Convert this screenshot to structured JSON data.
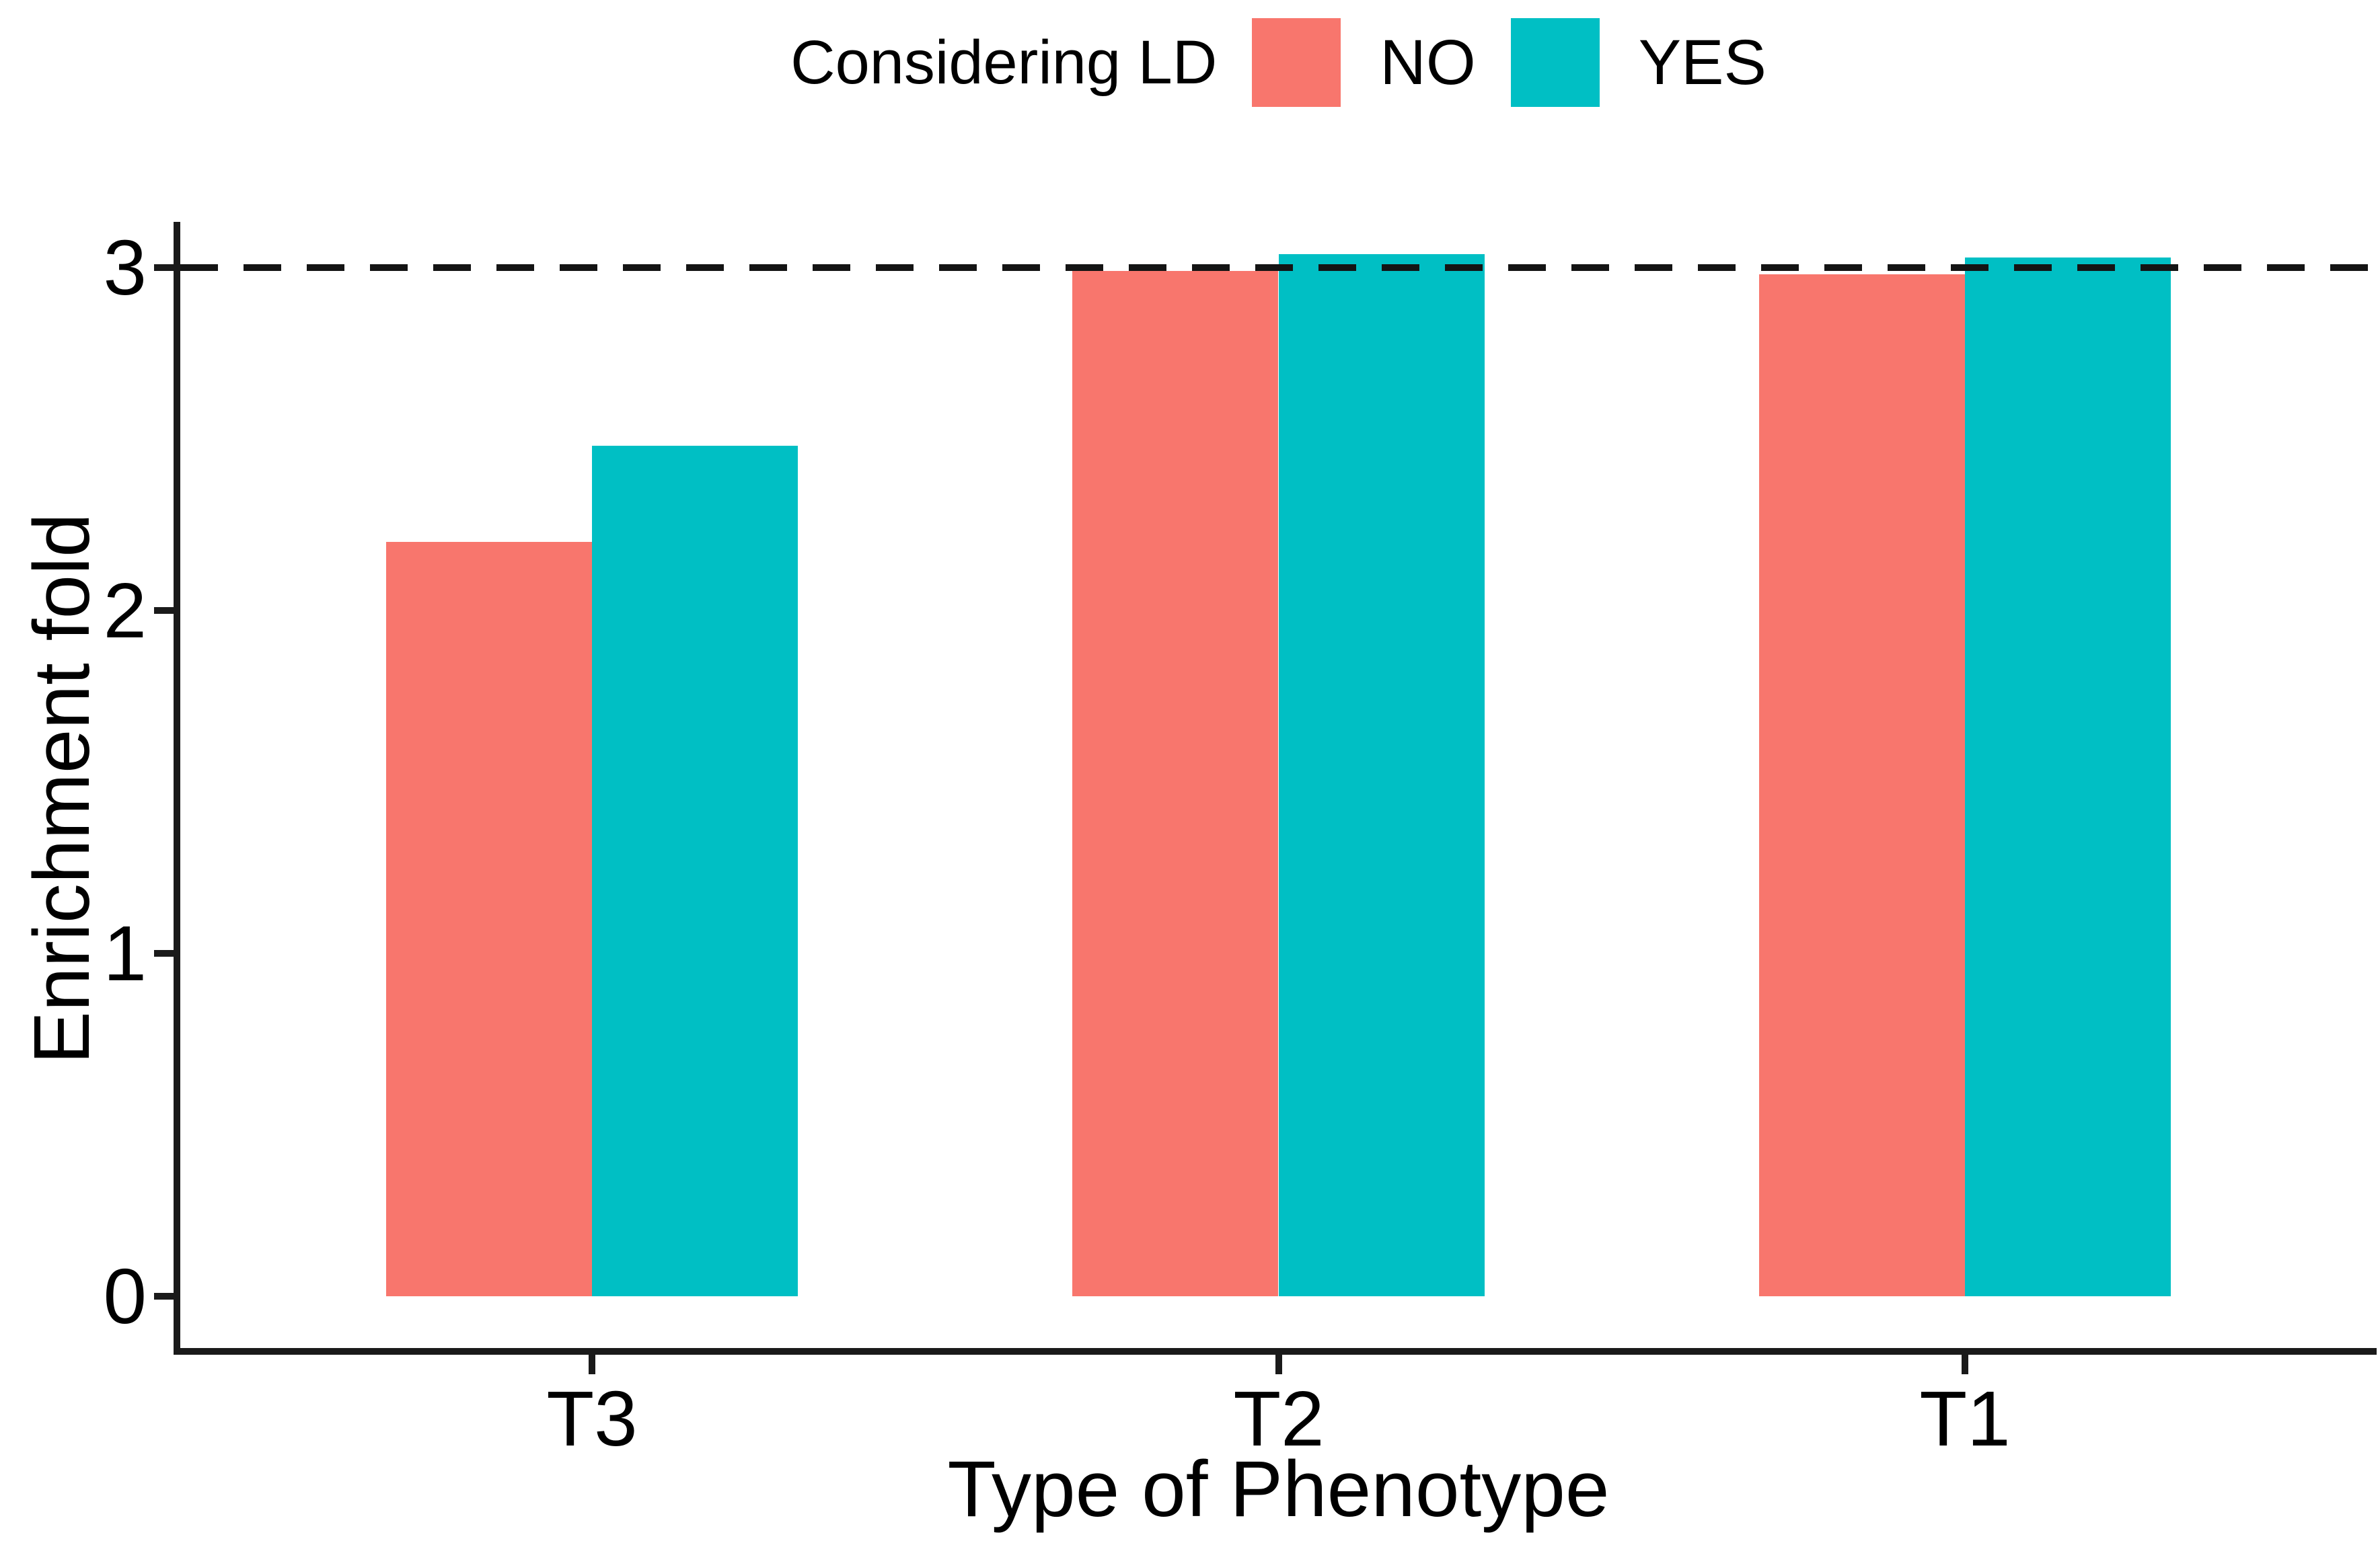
{
  "legend": {
    "title": "Considering LD",
    "items": [
      {
        "label": "NO",
        "color": "#F8766D"
      },
      {
        "label": "YES",
        "color": "#00BFC4"
      }
    ]
  },
  "axes": {
    "y_title": "Enrichment fold",
    "x_title": "Type of Phenotype",
    "y_tick_labels": [
      "0",
      "1",
      "2",
      "3"
    ],
    "x_tick_labels": [
      "T3",
      "T2",
      "T1"
    ]
  },
  "chart_data": {
    "type": "bar",
    "categories": [
      "T3",
      "T2",
      "T1"
    ],
    "series": [
      {
        "name": "NO",
        "color": "#F8766D",
        "values": [
          2.2,
          2.99,
          2.98
        ]
      },
      {
        "name": "YES",
        "color": "#00BFC4",
        "values": [
          2.48,
          3.04,
          3.03
        ]
      }
    ],
    "title": "",
    "xlabel": "Type of Phenotype",
    "ylabel": "Enrichment fold",
    "ylim": [
      0,
      3.28
    ],
    "y_ticks": [
      0,
      1,
      2,
      3
    ],
    "grid": false,
    "legend_title": "Considering LD",
    "legend_position": "top-center",
    "reference_line": {
      "y": 3,
      "style": "dashed",
      "color": "#000000"
    },
    "bar_group_gap": "none-within-group",
    "background": "#ffffff"
  },
  "colors": {
    "axis": "#1a1a1a",
    "text": "#000000",
    "background": "#ffffff"
  }
}
